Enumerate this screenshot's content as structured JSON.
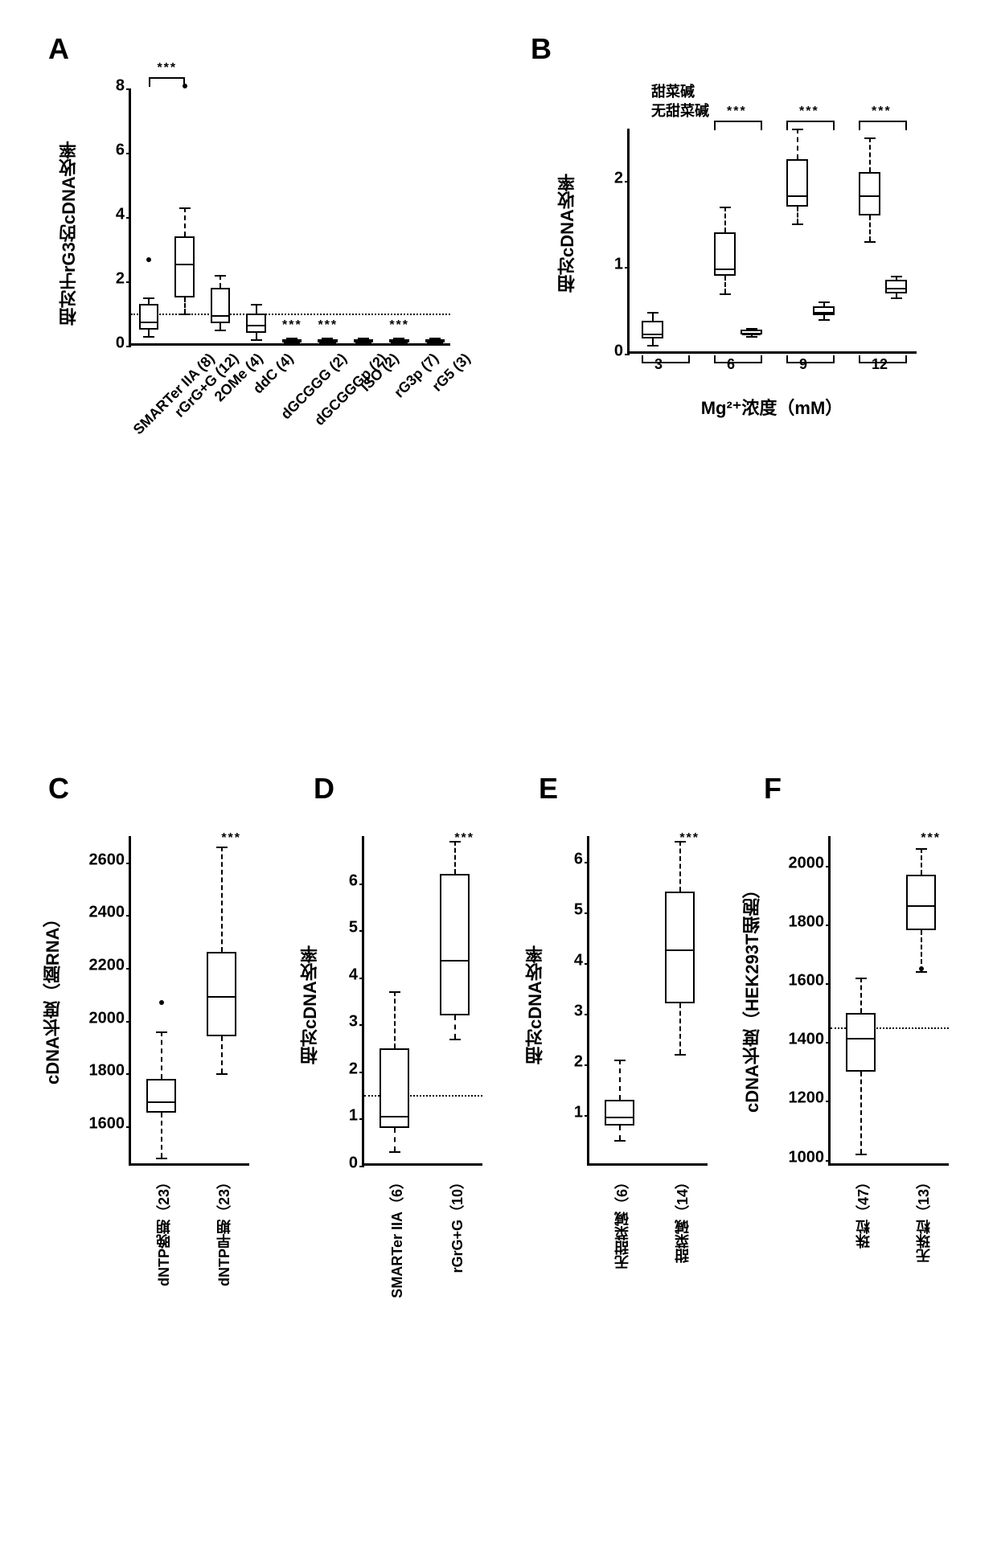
{
  "panels": {
    "A": {
      "label": "A",
      "y_label": "相对于rG3的cDNA收率",
      "ylim": [
        0,
        8
      ],
      "yticks": [
        0,
        2,
        4,
        6,
        8
      ],
      "ref_line": 1,
      "categories": [
        "SMARTer IIA (8)",
        "rGrG+G (12)",
        "2OMe (4)",
        "ddC (4)",
        "dGCGGG (2)",
        "dGCGGGp (2)",
        "ISO (2)",
        "rG3p (7)",
        "rG5 (3)"
      ],
      "boxes": [
        {
          "q1": 0.5,
          "median": 0.8,
          "q3": 1.3,
          "low": 0.3,
          "high": 1.5,
          "outliers": [
            2.6
          ]
        },
        {
          "q1": 1.5,
          "median": 2.6,
          "q3": 3.4,
          "low": 1.0,
          "high": 4.3,
          "outliers": [
            8.0
          ]
        },
        {
          "q1": 0.7,
          "median": 1.0,
          "q3": 1.8,
          "low": 0.5,
          "high": 2.2,
          "outliers": []
        },
        {
          "q1": 0.4,
          "median": 0.7,
          "q3": 1.0,
          "low": 0.2,
          "high": 1.3,
          "outliers": []
        },
        {
          "q1": 0.1,
          "median": 0.15,
          "q3": 0.2,
          "low": 0.05,
          "high": 0.25,
          "outliers": []
        },
        {
          "q1": 0.1,
          "median": 0.15,
          "q3": 0.2,
          "low": 0.05,
          "high": 0.25,
          "outliers": []
        },
        {
          "q1": 0.1,
          "median": 0.15,
          "q3": 0.2,
          "low": 0.05,
          "high": 0.25,
          "outliers": []
        },
        {
          "q1": 0.1,
          "median": 0.15,
          "q3": 0.2,
          "low": 0.05,
          "high": 0.25,
          "outliers": []
        },
        {
          "q1": 0.1,
          "median": 0.15,
          "q3": 0.2,
          "low": 0.05,
          "high": 0.25,
          "outliers": []
        }
      ],
      "sig_bracket": {
        "from": 0,
        "to": 1,
        "y": 8.2,
        "text": "***"
      },
      "sig_below": [
        {
          "idx": 4,
          "text": "***"
        },
        {
          "idx": 5,
          "text": "***"
        },
        {
          "idx": 7,
          "text": "***"
        }
      ]
    },
    "B": {
      "label": "B",
      "y_label": "相对cDNA收率",
      "x_label": "Mg²⁺浓度（mM）",
      "ylim": [
        0,
        2.6
      ],
      "yticks": [
        0,
        1,
        2
      ],
      "legend": [
        "甜菜碱",
        "无甜菜碱"
      ],
      "categories": [
        "3",
        "6",
        "9",
        "12"
      ],
      "pairs": [
        {
          "a": {
            "q1": 0.18,
            "median": 0.25,
            "q3": 0.38,
            "low": 0.1,
            "high": 0.48
          },
          "b": null
        },
        {
          "a": {
            "q1": 0.9,
            "median": 1.0,
            "q3": 1.4,
            "low": 0.7,
            "high": 1.7
          },
          "b": {
            "q1": 0.22,
            "median": 0.25,
            "q3": 0.28,
            "low": 0.2,
            "high": 0.3
          }
        },
        {
          "a": {
            "q1": 1.7,
            "median": 1.85,
            "q3": 2.25,
            "low": 1.5,
            "high": 2.6
          },
          "b": {
            "q1": 0.45,
            "median": 0.5,
            "q3": 0.55,
            "low": 0.4,
            "high": 0.6
          }
        },
        {
          "a": {
            "q1": 1.6,
            "median": 1.85,
            "q3": 2.1,
            "low": 1.3,
            "high": 2.5
          },
          "b": {
            "q1": 0.7,
            "median": 0.78,
            "q3": 0.85,
            "low": 0.65,
            "high": 0.9
          }
        }
      ],
      "sig": [
        {
          "pair": 1,
          "text": "***"
        },
        {
          "pair": 2,
          "text": "***"
        },
        {
          "pair": 3,
          "text": "***"
        }
      ]
    },
    "C": {
      "label": "C",
      "y_label": "cDNA长度（脑RNA）",
      "ylim": [
        1450,
        2700
      ],
      "yticks": [
        1600,
        1800,
        2000,
        2200,
        2400,
        2600
      ],
      "categories": [
        "dNTP晚期（23）",
        "dNTP早期（23）"
      ],
      "boxes": [
        {
          "q1": 1650,
          "median": 1700,
          "q3": 1780,
          "low": 1480,
          "high": 1960,
          "outliers": [
            2060
          ]
        },
        {
          "q1": 1940,
          "median": 2100,
          "q3": 2260,
          "low": 1800,
          "high": 2660,
          "outliers": []
        }
      ],
      "sig": {
        "text": "***",
        "y": 2700
      }
    },
    "D": {
      "label": "D",
      "y_label": "相对cDNA收率",
      "ylim": [
        0,
        7
      ],
      "yticks": [
        0,
        1,
        2,
        3,
        4,
        5,
        6
      ],
      "ref_line": 1.5,
      "categories": [
        "SMARTer IIA（6）",
        "rGrG+G（10）"
      ],
      "boxes": [
        {
          "q1": 0.8,
          "median": 1.1,
          "q3": 2.5,
          "low": 0.3,
          "high": 3.7,
          "outliers": []
        },
        {
          "q1": 3.2,
          "median": 4.4,
          "q3": 6.2,
          "low": 2.7,
          "high": 6.9,
          "outliers": []
        }
      ],
      "sig": {
        "text": "***",
        "y": 7
      }
    },
    "E": {
      "label": "E",
      "y_label": "相对cDNA收率",
      "ylim": [
        0,
        6.5
      ],
      "yticks": [
        1,
        2,
        3,
        4,
        5,
        6
      ],
      "categories": [
        "无甜菜碱（6）",
        "甜菜碱（14）"
      ],
      "boxes": [
        {
          "q1": 0.8,
          "median": 1.0,
          "q3": 1.3,
          "low": 0.5,
          "high": 2.1,
          "outliers": []
        },
        {
          "q1": 3.2,
          "median": 4.3,
          "q3": 5.4,
          "low": 2.2,
          "high": 6.4,
          "outliers": []
        }
      ],
      "sig": {
        "text": "***",
        "y": 6.5
      }
    },
    "F": {
      "label": "F",
      "y_label": "cDNA长度（HEK293T细胞）",
      "ylim": [
        980,
        2100
      ],
      "yticks": [
        1000,
        1200,
        1400,
        1600,
        1800,
        2000
      ],
      "ref_line": 1450,
      "categories": [
        "珠粒（47）",
        "无珠粒（13）"
      ],
      "boxes": [
        {
          "q1": 1300,
          "median": 1420,
          "q3": 1500,
          "low": 1020,
          "high": 1620,
          "outliers": []
        },
        {
          "q1": 1780,
          "median": 1870,
          "q3": 1970,
          "low": 1640,
          "high": 2060,
          "outliers": [
            1640
          ]
        }
      ],
      "sig": {
        "text": "***",
        "y": 2090
      }
    }
  },
  "colors": {
    "box_fill": "#ffffff",
    "stroke": "#000000",
    "bg": "#ffffff"
  }
}
